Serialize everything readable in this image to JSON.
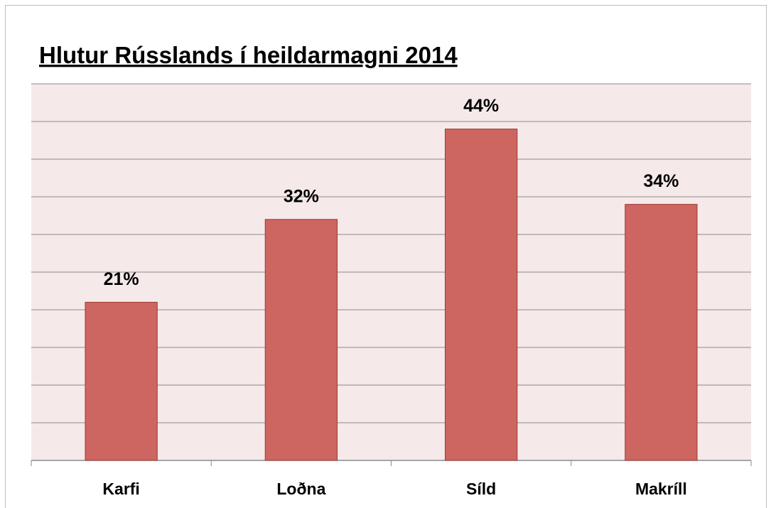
{
  "chart_data": {
    "type": "bar",
    "title": "Hlutur Rússlands í heildarmagni 2014",
    "categories": [
      "Karfi",
      "Loðna",
      "Síld",
      "Makríll"
    ],
    "values": [
      21,
      32,
      44,
      34
    ],
    "value_labels": [
      "21%",
      "32%",
      "44%",
      "34%"
    ],
    "color": "#cd6560",
    "ylim": [
      0,
      50
    ],
    "yticks": [
      0,
      5,
      10,
      15,
      20,
      25,
      30,
      35,
      40,
      45,
      50
    ],
    "grid": true
  }
}
